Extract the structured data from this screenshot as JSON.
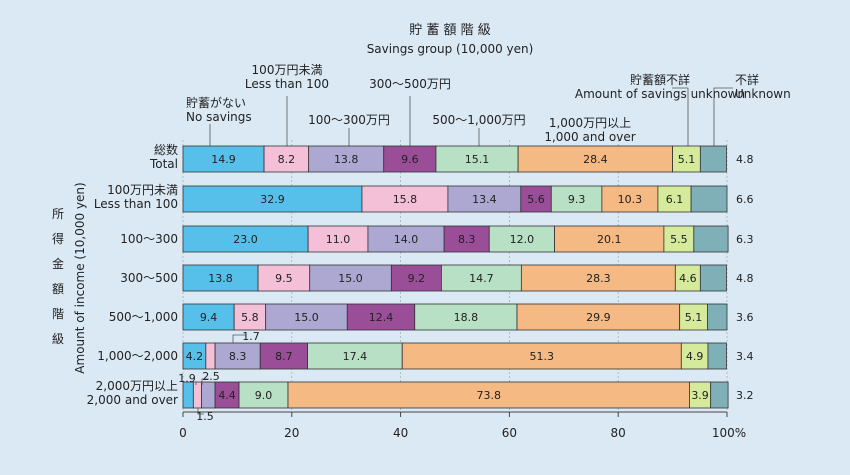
{
  "chart_data": {
    "type": "bar",
    "stacked": true,
    "orientation": "horizontal",
    "title_ja": "貯 蓄 額 階 級",
    "title_en": "Savings group (10,000 yen)",
    "ylabel_ja": "所 得 金 額 階 級",
    "ylabel_en": "Amount of income (10,000 yen)",
    "xlim": [
      0,
      100
    ],
    "xticks": [
      "0",
      "20",
      "40",
      "60",
      "80",
      "100%"
    ],
    "series": [
      {
        "name": [
          "貯蓄がない",
          "No savings"
        ],
        "color": "#56c0ea"
      },
      {
        "name": [
          "100万円未満",
          "Less than 100"
        ],
        "color": "#f4c0d8"
      },
      {
        "name": [
          "100～300万円"
        ],
        "color": "#ada8d2"
      },
      {
        "name": [
          "300～500万円"
        ],
        "color": "#9a4e98"
      },
      {
        "name": [
          "500～1,000万円"
        ],
        "color": "#b8e0c4"
      },
      {
        "name": [
          "1,000万円以上",
          "1,000 and over"
        ],
        "color": "#f5b984"
      },
      {
        "name": [
          "貯蓄額不詳",
          "Amount of savings unknown"
        ],
        "color": "#d6ea9c"
      },
      {
        "name": [
          "不詳",
          "Unknown"
        ],
        "color": "#7fb0b8"
      }
    ],
    "categories": [
      {
        "label": [
          "総数",
          "Total"
        ],
        "values": [
          14.9,
          8.2,
          13.8,
          9.6,
          15.1,
          28.4,
          5.1,
          4.8
        ],
        "labels": [
          "14.9",
          "8.2",
          "13.8",
          "9.6",
          "15.1",
          "28.4",
          "5.1",
          ""
        ],
        "outside": "4.8"
      },
      {
        "label": [
          "100万円未満",
          "Less than 100"
        ],
        "values": [
          32.9,
          15.8,
          13.4,
          5.6,
          9.3,
          10.3,
          6.1,
          6.6
        ],
        "labels": [
          "32.9",
          "15.8",
          "13.4",
          "5.6",
          "9.3",
          "10.3",
          "6.1",
          ""
        ],
        "outside": "6.6"
      },
      {
        "label": [
          "100～300"
        ],
        "values": [
          23.0,
          11.0,
          14.0,
          8.3,
          12.0,
          20.1,
          5.5,
          6.3
        ],
        "labels": [
          "23.0",
          "11.0",
          "14.0",
          "8.3",
          "12.0",
          "20.1",
          "5.5",
          ""
        ],
        "outside": "6.3"
      },
      {
        "label": [
          "300～500"
        ],
        "values": [
          13.8,
          9.5,
          15.0,
          9.2,
          14.7,
          28.3,
          4.6,
          4.8
        ],
        "labels": [
          "13.8",
          "9.5",
          "15.0",
          "9.2",
          "14.7",
          "28.3",
          "4.6",
          ""
        ],
        "outside": "4.8"
      },
      {
        "label": [
          "500～1,000"
        ],
        "values": [
          9.4,
          5.8,
          15.0,
          12.4,
          18.8,
          29.9,
          5.1,
          3.6
        ],
        "labels": [
          "9.4",
          "5.8",
          "15.0",
          "12.4",
          "18.8",
          "29.9",
          "5.1",
          ""
        ],
        "outside": "3.6"
      },
      {
        "label": [
          "1,000～2,000"
        ],
        "values": [
          4.2,
          1.7,
          8.3,
          8.7,
          17.4,
          51.3,
          4.9,
          3.4
        ],
        "labels": [
          "4.2",
          "",
          "8.3",
          "8.7",
          "17.4",
          "51.3",
          "4.9",
          ""
        ],
        "outside": "3.4"
      },
      {
        "label": [
          "2,000万円以上",
          "2,000 and over"
        ],
        "values": [
          1.9,
          1.5,
          2.5,
          4.4,
          9.0,
          73.8,
          3.9,
          3.2
        ],
        "labels": [
          "",
          "",
          "",
          "4.4",
          "9.0",
          "73.8",
          "3.9",
          ""
        ],
        "outside": "3.2"
      }
    ],
    "callouts": [
      "1.7",
      "1.9",
      "2.5",
      "1.5"
    ]
  }
}
